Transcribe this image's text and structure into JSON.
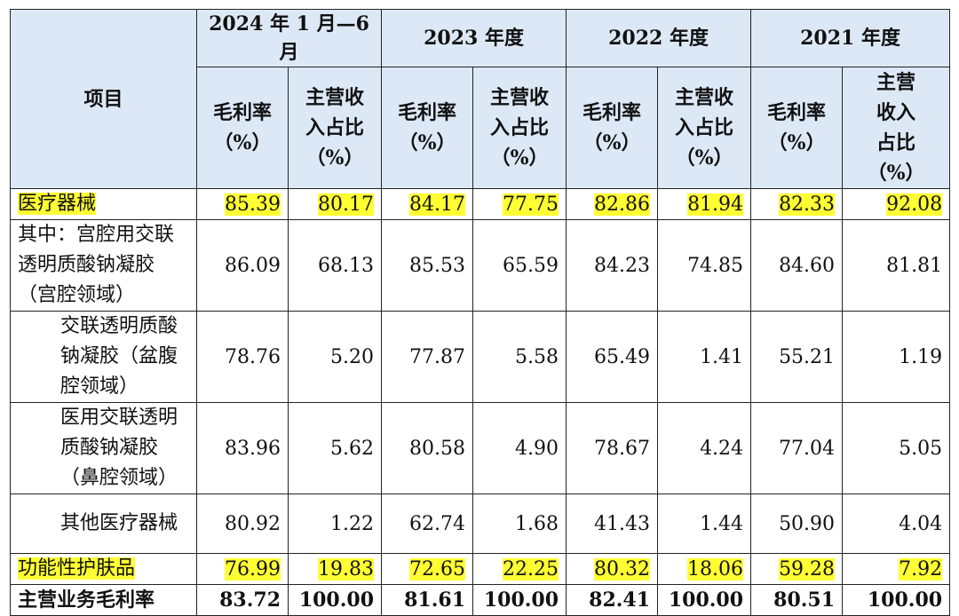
{
  "header": {
    "item_label": "项目",
    "periods": [
      "2024 年 1 月—6 月",
      "2023 年度",
      "2022 年度",
      "2021 年度"
    ],
    "gross_margin": "毛利率\n（%）",
    "revenue_share": "主营收\n入占比\n（%）",
    "revenue_share_2021": "主营\n收入\n占比\n（%）"
  },
  "rows": [
    {
      "name": "医疗器械",
      "values": [
        "85.39",
        "80.17",
        "84.17",
        "77.75",
        "82.86",
        "81.94",
        "82.33",
        "92.08"
      ]
    },
    {
      "name": "其中：宫腔用交联透明质酸钠凝胶（宫腔领域）",
      "values": [
        "86.09",
        "68.13",
        "85.53",
        "65.59",
        "84.23",
        "74.85",
        "84.60",
        "81.81"
      ]
    },
    {
      "name": "交联透明质酸钠凝胶（盆腹腔领域）",
      "values": [
        "78.76",
        "5.20",
        "77.87",
        "5.58",
        "65.49",
        "1.41",
        "55.21",
        "1.19"
      ]
    },
    {
      "name": "医用交联透明质酸钠凝胶（鼻腔领域）",
      "values": [
        "83.96",
        "5.62",
        "80.58",
        "4.90",
        "78.67",
        "4.24",
        "77.04",
        "5.05"
      ]
    },
    {
      "name": "其他医疗器械",
      "values": [
        "80.92",
        "1.22",
        "62.74",
        "1.68",
        "41.43",
        "1.44",
        "50.90",
        "4.04"
      ]
    },
    {
      "name": "功能性护肤品",
      "values": [
        "76.99",
        "19.83",
        "72.65",
        "22.25",
        "80.32",
        "18.06",
        "59.28",
        "7.92"
      ]
    },
    {
      "name": "主营业务毛利率",
      "values": [
        "83.72",
        "100.00",
        "81.61",
        "100.00",
        "82.41",
        "100.00",
        "80.51",
        "100.00"
      ]
    }
  ],
  "highlight_color": "#ffff33",
  "header_color": "#dde8f6"
}
